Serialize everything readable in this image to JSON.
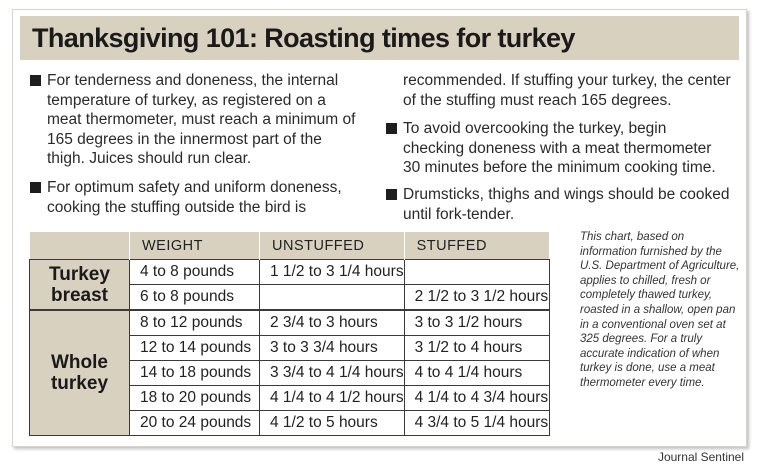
{
  "title": "Thanksgiving 101: Roasting times for turkey",
  "bullets": {
    "b1": "For tenderness and doneness, the internal temperature of turkey, as registered on a meat thermometer, must reach a minimum of 165 degrees in the innermost part of the thigh. Juices should run clear.",
    "b2_part1": "For optimum safety and uniform doneness, cooking the stuffing outside the bird is",
    "b2_part2": "recommended. If stuffing your turkey, the center of the stuffing must reach 165 degrees.",
    "b3": "To avoid overcooking the turkey, begin checking doneness with a meat thermometer 30 minutes before the minimum cooking time.",
    "b4": "Drumsticks, thighs and wings should be cooked until fork-tender."
  },
  "table": {
    "headers": [
      "WEIGHT",
      "UNSTUFFED",
      "STUFFED"
    ],
    "categories": {
      "breast_line1": "Turkey",
      "breast_line2": "breast",
      "whole_line1": "Whole",
      "whole_line2": "turkey"
    },
    "rows": [
      {
        "weight": "4 to 8 pounds",
        "unstuffed": "1 1/2 to 3 1/4 hours",
        "stuffed": ""
      },
      {
        "weight": "6 to 8 pounds",
        "unstuffed": "",
        "stuffed": "2 1/2 to 3 1/2 hours"
      },
      {
        "weight": "8 to 12 pounds",
        "unstuffed": "2 3/4 to 3 hours",
        "stuffed": "3 to 3 1/2 hours"
      },
      {
        "weight": "12 to 14 pounds",
        "unstuffed": "3 to 3 3/4 hours",
        "stuffed": "3 1/2  to 4 hours"
      },
      {
        "weight": "14 to 18 pounds",
        "unstuffed": "3 3/4 to 4 1/4 hours",
        "stuffed": "4 to 4 1/4 hours"
      },
      {
        "weight": "18 to 20 pounds",
        "unstuffed": "4 1/4 to 4 1/2 hours",
        "stuffed": "4 1/4 to 4 3/4 hours"
      },
      {
        "weight": "20 to 24 pounds",
        "unstuffed": "4 1/2 to 5 hours",
        "stuffed": "4 3/4 to 5 1/4 hours"
      }
    ]
  },
  "note": "This chart, based on information furnished by the U.S. Department of Agriculture, applies to chilled, fresh or completely thawed turkey, roasted in a shallow, open pan in a conventional oven set at 325 degrees. For a truly accurate indication of when turkey is done, use a meat thermometer every time.",
  "credit": "Journal Sentinel",
  "colors": {
    "title_bar": "#d9d1c0",
    "header_fill": "#d9d1c0",
    "text": "#1e1e1e"
  }
}
